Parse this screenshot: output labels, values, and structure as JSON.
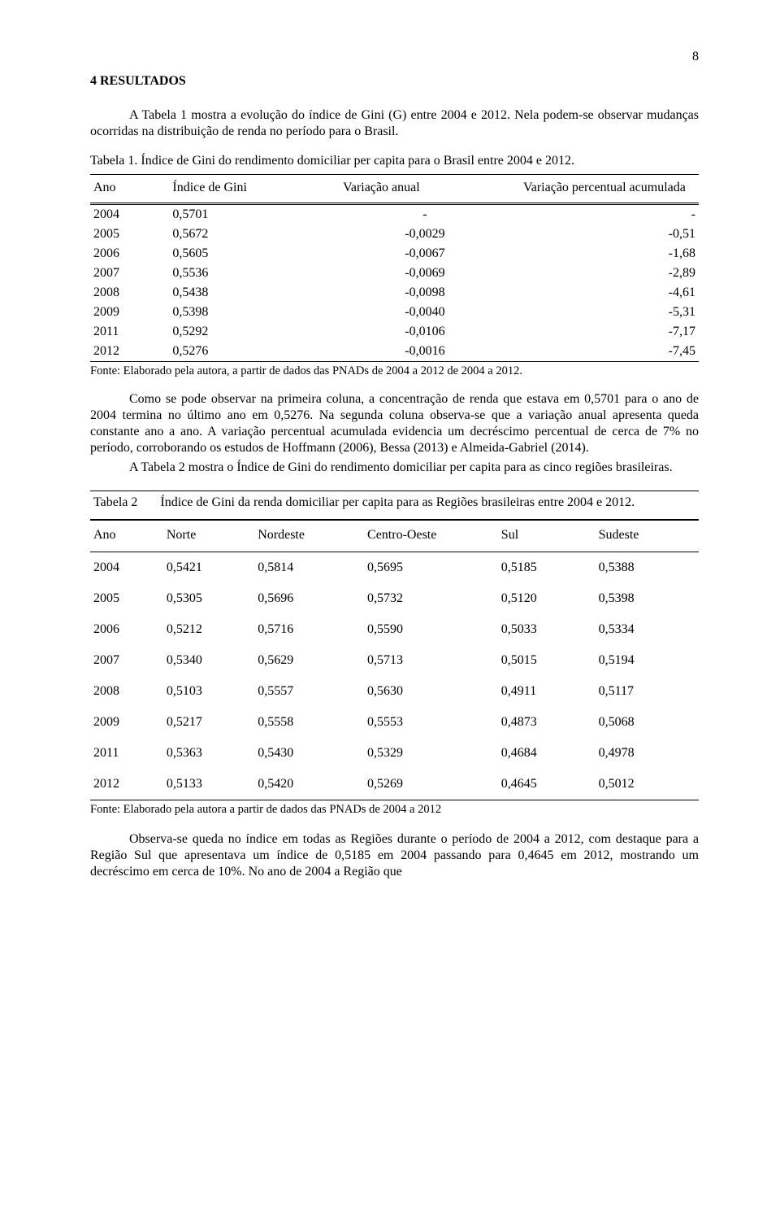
{
  "page_number": "8",
  "section_heading": "4 RESULTADOS",
  "intro_para": "A Tabela 1 mostra a evolução do índice de Gini (G) entre 2004 e 2012. Nela podem-se observar mudanças ocorridas na distribuição de renda no período para o Brasil.",
  "table1_caption": "Tabela 1. Índice de Gini do rendimento domiciliar per capita para o Brasil entre 2004 e 2012.",
  "table1": {
    "headers": {
      "ano": "Ano",
      "gini": "Índice de Gini",
      "var": "Variação anual",
      "acc": "Variação percentual acumulada"
    },
    "rows": [
      {
        "ano": "2004",
        "gini": "0,5701",
        "var": "-",
        "acc": "-"
      },
      {
        "ano": "2005",
        "gini": "0,5672",
        "var": "-0,0029",
        "acc": "-0,51"
      },
      {
        "ano": "2006",
        "gini": "0,5605",
        "var": "-0,0067",
        "acc": "-1,68"
      },
      {
        "ano": "2007",
        "gini": "0,5536",
        "var": "-0,0069",
        "acc": "-2,89"
      },
      {
        "ano": "2008",
        "gini": "0,5438",
        "var": "-0,0098",
        "acc": "-4,61"
      },
      {
        "ano": "2009",
        "gini": "0,5398",
        "var": "-0,0040",
        "acc": "-5,31"
      },
      {
        "ano": "2011",
        "gini": "0,5292",
        "var": "-0,0106",
        "acc": "-7,17"
      },
      {
        "ano": "2012",
        "gini": "0,5276",
        "var": "-0,0016",
        "acc": "-7,45"
      }
    ],
    "source": "Fonte: Elaborado pela autora, a partir de dados das PNADs de 2004 a 2012 de 2004 a 2012."
  },
  "mid_para1": "Como se pode observar na primeira coluna, a concentração de renda que estava em 0,5701 para o ano de 2004 termina no último ano em 0,5276. Na segunda coluna observa-se que a variação anual apresenta queda constante ano a ano. A variação percentual acumulada evidencia um decréscimo percentual de cerca de 7% no período, corroborando os estudos de Hoffmann (2006), Bessa (2013) e Almeida-Gabriel (2014).",
  "mid_para2": "A Tabela 2 mostra o Índice de Gini do rendimento domiciliar per capita para as cinco regiões brasileiras.",
  "table2_caption_label": "Tabela 2",
  "table2_caption_title": "Índice de Gini da renda domiciliar per capita para as Regiões brasileiras entre 2004 e 2012.",
  "table2": {
    "headers": {
      "ano": "Ano",
      "norte": "Norte",
      "nordeste": "Nordeste",
      "co": "Centro-Oeste",
      "sul": "Sul",
      "sudeste": "Sudeste"
    },
    "rows": [
      {
        "ano": "2004",
        "n": "0,5421",
        "ne": "0,5814",
        "co": "0,5695",
        "s": "0,5185",
        "se": "0,5388"
      },
      {
        "ano": "2005",
        "n": "0,5305",
        "ne": "0,5696",
        "co": "0,5732",
        "s": "0,5120",
        "se": "0,5398"
      },
      {
        "ano": "2006",
        "n": "0,5212",
        "ne": "0,5716",
        "co": "0,5590",
        "s": "0,5033",
        "se": "0,5334"
      },
      {
        "ano": "2007",
        "n": "0,5340",
        "ne": "0,5629",
        "co": "0,5713",
        "s": "0,5015",
        "se": "0,5194"
      },
      {
        "ano": "2008",
        "n": "0,5103",
        "ne": "0,5557",
        "co": "0,5630",
        "s": "0,4911",
        "se": "0,5117"
      },
      {
        "ano": "2009",
        "n": "0,5217",
        "ne": "0,5558",
        "co": "0,5553",
        "s": "0,4873",
        "se": "0,5068"
      },
      {
        "ano": "2011",
        "n": "0,5363",
        "ne": "0,5430",
        "co": "0,5329",
        "s": "0,4684",
        "se": "0,4978"
      },
      {
        "ano": "2012",
        "n": "0,5133",
        "ne": "0,5420",
        "co": "0,5269",
        "s": "0,4645",
        "se": "0,5012"
      }
    ],
    "source": "Fonte: Elaborado pela autora a partir de dados das PNADs de 2004 a 2012"
  },
  "end_para": "Observa-se queda no índice em todas as Regiões durante o período de 2004 a 2012, com destaque para a Região Sul que apresentava um índice de 0,5185 em 2004 passando para 0,4645 em 2012, mostrando um decréscimo em cerca de 10%. No ano de 2004 a Região que"
}
